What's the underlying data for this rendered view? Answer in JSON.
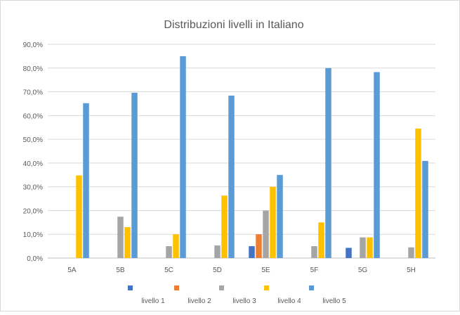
{
  "chart_data": {
    "type": "bar",
    "title": "Distribuzioni livelli in Italiano",
    "xlabel": "",
    "ylabel": "",
    "categories": [
      "5A",
      "5B",
      "5C",
      "5D",
      "5E",
      "5F",
      "5G",
      "5H"
    ],
    "ylim": [
      0,
      90
    ],
    "yticks": [
      "0,0%",
      "10,0%",
      "20,0%",
      "30,0%",
      "40,0%",
      "50,0%",
      "60,0%",
      "70,0%",
      "80,0%",
      "90,0%"
    ],
    "grid": true,
    "legend_position": "bottom",
    "series": [
      {
        "name": "livello 1",
        "color": "#4472C4",
        "values": [
          0,
          0,
          0,
          0,
          5.0,
          0,
          4.3,
          0
        ]
      },
      {
        "name": "livello 2",
        "color": "#ED7D31",
        "values": [
          0,
          0,
          0,
          0,
          10.0,
          0,
          0,
          0
        ]
      },
      {
        "name": "livello 3",
        "color": "#A5A5A5",
        "values": [
          0,
          17.4,
          5.0,
          5.3,
          20.0,
          5.0,
          8.7,
          4.5
        ]
      },
      {
        "name": "livello 4",
        "color": "#FFC000",
        "values": [
          34.8,
          13.0,
          10.0,
          26.3,
          30.0,
          15.0,
          8.7,
          54.5
        ]
      },
      {
        "name": "livello 5",
        "color": "#5B9BD5",
        "values": [
          65.2,
          69.6,
          85.0,
          68.4,
          35.0,
          80.0,
          78.3,
          40.9
        ]
      }
    ]
  }
}
